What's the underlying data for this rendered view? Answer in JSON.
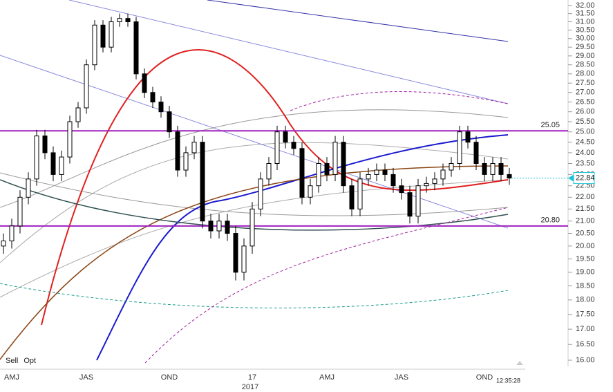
{
  "chart_data": {
    "type": "candlestick",
    "categories": [
      null,
      "AMJ",
      null,
      null,
      null,
      null,
      null,
      null,
      null,
      null,
      "JAS",
      null,
      null,
      null,
      null,
      null,
      null,
      null,
      null,
      null,
      "OND",
      null,
      null,
      null,
      null,
      null,
      null,
      null,
      null,
      null,
      "17",
      null,
      null,
      null,
      null,
      null,
      null,
      null,
      null,
      "AMJ",
      null,
      null,
      null,
      null,
      null,
      null,
      null,
      null,
      "JAS",
      null,
      null,
      null,
      null,
      null,
      null,
      null,
      null,
      null,
      "OND",
      null,
      null,
      null
    ],
    "x_sublabel": "2017",
    "open": [
      20.0,
      20.2,
      20.8,
      22.0,
      22.8,
      24.8,
      24.0,
      23.0,
      23.8,
      25.5,
      26.2,
      28.5,
      30.8,
      29.5,
      31.0,
      31.2,
      31.0,
      28.0,
      27.0,
      26.5,
      26.0,
      25.0,
      23.2,
      24.0,
      24.5,
      21.0,
      20.6,
      21.0,
      20.5,
      19.0,
      20.0,
      21.5,
      22.8,
      23.5,
      25.0,
      24.5,
      24.2,
      22.0,
      22.5,
      23.5,
      23.0,
      24.5,
      22.5,
      21.5,
      22.8,
      23.0,
      23.2,
      23.0,
      22.5,
      22.2,
      21.2,
      22.5,
      22.6,
      22.8,
      23.2,
      23.5,
      25.0,
      24.5,
      23.5,
      23.0,
      23.5,
      23.0
    ],
    "high": [
      20.5,
      21.1,
      22.3,
      23.1,
      25.1,
      25.1,
      24.3,
      24.1,
      25.8,
      26.5,
      28.8,
      31.1,
      31.1,
      31.3,
      31.5,
      31.5,
      31.3,
      28.3,
      27.3,
      26.8,
      26.3,
      25.3,
      24.3,
      24.8,
      24.8,
      21.3,
      21.3,
      21.3,
      20.8,
      20.3,
      21.8,
      23.1,
      23.8,
      25.3,
      25.3,
      24.8,
      24.5,
      22.8,
      23.8,
      23.8,
      24.8,
      24.8,
      22.8,
      23.1,
      23.3,
      23.5,
      23.5,
      23.3,
      22.8,
      22.5,
      22.8,
      22.9,
      23.1,
      23.5,
      23.8,
      25.3,
      25.3,
      24.8,
      23.8,
      23.8,
      23.8,
      23.3
    ],
    "low": [
      19.7,
      19.9,
      20.5,
      21.7,
      22.5,
      23.7,
      22.7,
      22.7,
      23.5,
      25.2,
      25.9,
      28.2,
      29.2,
      29.2,
      30.7,
      30.7,
      27.7,
      26.7,
      26.2,
      25.7,
      24.7,
      22.9,
      22.9,
      23.7,
      20.7,
      20.3,
      20.3,
      20.2,
      18.7,
      18.7,
      19.7,
      21.2,
      22.5,
      23.2,
      24.2,
      23.9,
      21.7,
      21.7,
      22.2,
      22.7,
      22.7,
      22.2,
      21.2,
      21.2,
      22.5,
      22.7,
      22.7,
      22.2,
      21.9,
      20.9,
      20.9,
      22.2,
      22.3,
      22.5,
      22.9,
      23.2,
      24.2,
      23.2,
      22.7,
      22.7,
      22.7,
      22.54
    ],
    "close": [
      20.2,
      20.8,
      22.0,
      22.8,
      24.8,
      24.0,
      23.0,
      23.8,
      25.5,
      26.2,
      28.5,
      30.8,
      29.5,
      31.0,
      31.2,
      31.0,
      28.0,
      27.0,
      26.5,
      26.0,
      25.0,
      23.2,
      24.0,
      24.5,
      21.0,
      20.6,
      21.0,
      20.5,
      19.0,
      20.0,
      21.5,
      22.8,
      23.5,
      25.0,
      24.5,
      24.2,
      22.0,
      22.5,
      23.5,
      23.0,
      24.5,
      22.5,
      21.5,
      22.8,
      23.0,
      23.2,
      23.0,
      22.5,
      22.2,
      21.2,
      22.5,
      22.6,
      22.8,
      23.2,
      23.5,
      25.0,
      24.5,
      23.5,
      23.0,
      23.5,
      23.0,
      22.84
    ],
    "up_color": "#ffffff",
    "down_color": "#000000",
    "last_price": 22.84,
    "last_price_color": "#18c4d8",
    "reference_lines": [
      {
        "value": 25.05,
        "label": "25.05"
      },
      {
        "value": 20.8,
        "label": "20.80"
      }
    ],
    "reference_color": "#a020c0",
    "ylim": [
      16,
      32
    ],
    "log_scale": true,
    "yticks": [
      {
        "value": 32,
        "label": "32.00"
      },
      {
        "value": 31.5,
        "label": "31.50"
      },
      {
        "value": 31,
        "label": "31.00"
      },
      {
        "value": 30.5,
        "label": "30.50"
      },
      {
        "value": 30,
        "label": "30.00"
      },
      {
        "value": 29.5,
        "label": "29.50"
      },
      {
        "value": 29,
        "label": "29.00"
      },
      {
        "value": 28.5,
        "label": "28.50"
      },
      {
        "value": 28,
        "label": "28.00"
      },
      {
        "value": 27.5,
        "label": "27.50"
      },
      {
        "value": 27,
        "label": "27.00"
      },
      {
        "value": 26.5,
        "label": "26.50"
      },
      {
        "value": 26,
        "label": "26.00"
      },
      {
        "value": 25.5,
        "label": "25.50"
      },
      {
        "value": 25,
        "label": "25.00"
      },
      {
        "value": 24.5,
        "label": "24.50"
      },
      {
        "value": 24,
        "label": "24.00"
      },
      {
        "value": 23.5,
        "label": "23.50"
      },
      {
        "value": 23,
        "label": "23.00"
      },
      {
        "value": 22.5,
        "label": "22.50"
      },
      {
        "value": 22,
        "label": "22.00"
      },
      {
        "value": 21.5,
        "label": "21.50"
      },
      {
        "value": 21,
        "label": "21.00"
      },
      {
        "value": 20.5,
        "label": "20.50"
      },
      {
        "value": 20,
        "label": "20.00"
      },
      {
        "value": 19.5,
        "label": "19.50"
      },
      {
        "value": 19,
        "label": "19.00"
      },
      {
        "value": 18.5,
        "label": "18.50"
      },
      {
        "value": 18,
        "label": "18.00"
      },
      {
        "value": 17.5,
        "label": "17.50"
      },
      {
        "value": 17,
        "label": "17.00"
      },
      {
        "value": 16.5,
        "label": "16.50"
      },
      {
        "value": 16,
        "label": "16.00"
      }
    ],
    "signal_labels": [
      {
        "text": "Sell",
        "color": "#e02020"
      },
      {
        "text": "Opt",
        "color": "#c0c0c0"
      }
    ],
    "timestamp": "12:35:28"
  }
}
